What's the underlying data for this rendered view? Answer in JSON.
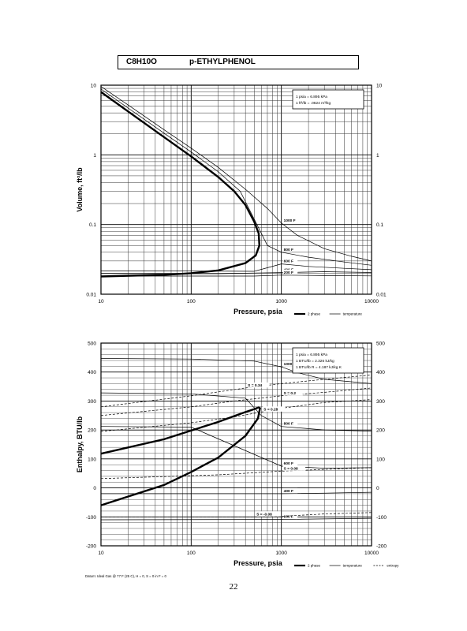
{
  "header": {
    "formula": "C8H10O",
    "name": "p-ETHYLPHENOL"
  },
  "page_number": "22",
  "chart_data": [
    {
      "type": "line",
      "title": "",
      "xlabel": "Pressure,  psia",
      "ylabel": "Volume, ft^3/lb",
      "x_scale": "log",
      "y_scale": "log",
      "xlim": [
        10,
        10000
      ],
      "ylim": [
        0.01,
        10
      ],
      "x_ticks": [
        {
          "v": 10,
          "label": "10"
        },
        {
          "v": 100,
          "label": "100"
        },
        {
          "v": 1000,
          "label": "1000"
        },
        {
          "v": 10000,
          "label": "10000"
        }
      ],
      "y_ticks": [
        {
          "v": 0.01,
          "label": "0.01"
        },
        {
          "v": 0.1,
          "label": "0.1"
        },
        {
          "v": 1,
          "label": "1"
        },
        {
          "v": 10,
          "label": "10"
        }
      ],
      "grid": true,
      "info_box": [
        "1 psia  =  6.895 kPa",
        "1 ft^3/lb  =  .0624 m^3/kg"
      ],
      "legend": [
        {
          "label": "2 phase",
          "style": "thick"
        },
        {
          "label": "temperature",
          "style": "thin"
        }
      ],
      "series": [
        {
          "kind": "two-phase",
          "points": [
            [
              10,
              8.0
            ],
            [
              20,
              4.2
            ],
            [
              50,
              1.8
            ],
            [
              100,
              0.95
            ],
            [
              200,
              0.48
            ],
            [
              300,
              0.3
            ],
            [
              400,
              0.19
            ],
            [
              500,
              0.11
            ],
            [
              560,
              0.075
            ],
            [
              570,
              0.05
            ],
            [
              520,
              0.036
            ],
            [
              400,
              0.028
            ],
            [
              200,
              0.022
            ],
            [
              100,
              0.02
            ],
            [
              50,
              0.019
            ],
            [
              10,
              0.018
            ]
          ]
        },
        {
          "kind": "temperature",
          "label": "1000 F",
          "points": [
            [
              10,
              9.6
            ],
            [
              20,
              5.2
            ],
            [
              50,
              2.3
            ],
            [
              100,
              1.25
            ],
            [
              200,
              0.66
            ],
            [
              400,
              0.32
            ],
            [
              700,
              0.17
            ],
            [
              1000,
              0.105
            ],
            [
              1500,
              0.07
            ],
            [
              3000,
              0.045
            ],
            [
              6000,
              0.035
            ],
            [
              10000,
              0.03
            ]
          ]
        },
        {
          "kind": "temperature",
          "label": "800 F",
          "points": [
            [
              10,
              8.8
            ],
            [
              20,
              4.7
            ],
            [
              50,
              2.05
            ],
            [
              100,
              1.1
            ],
            [
              200,
              0.57
            ],
            [
              350,
              0.3
            ],
            [
              500,
              0.12
            ],
            [
              700,
              0.05
            ],
            [
              1000,
              0.04
            ],
            [
              2000,
              0.034
            ],
            [
              5000,
              0.029
            ],
            [
              10000,
              0.026
            ]
          ]
        },
        {
          "kind": "temperature",
          "label": "600 F",
          "points": [
            [
              10,
              0.0215
            ],
            [
              100,
              0.0215
            ],
            [
              500,
              0.0213
            ],
            [
              1000,
              0.0272
            ],
            [
              2000,
              0.025
            ],
            [
              5000,
              0.0235
            ],
            [
              10000,
              0.0225
            ]
          ]
        },
        {
          "kind": "temperature",
          "label": "400 F",
          "points": [
            [
              10,
              0.0198
            ],
            [
              200,
              0.0197
            ],
            [
              1000,
              0.0204
            ],
            [
              3000,
              0.021
            ],
            [
              10000,
              0.0205
            ]
          ]
        },
        {
          "kind": "temperature",
          "label": "200 F",
          "points": [
            [
              10,
              0.0182
            ],
            [
              500,
              0.0182
            ],
            [
              1000,
              0.0188
            ],
            [
              3000,
              0.0185
            ],
            [
              10000,
              0.0183
            ]
          ]
        }
      ]
    },
    {
      "type": "line",
      "title": "",
      "xlabel": "Pressure,  psia",
      "ylabel": "Enthalpy, BTU/lb",
      "x_scale": "log",
      "y_scale": "linear",
      "xlim": [
        10,
        10000
      ],
      "ylim": [
        -200,
        500
      ],
      "x_ticks": [
        {
          "v": 10,
          "label": "10"
        },
        {
          "v": 100,
          "label": "100"
        },
        {
          "v": 1000,
          "label": "1000"
        },
        {
          "v": 10000,
          "label": "10000"
        }
      ],
      "y_ticks": [
        {
          "v": -200,
          "label": "-200"
        },
        {
          "v": -100,
          "label": "-100"
        },
        {
          "v": 0,
          "label": "0"
        },
        {
          "v": 100,
          "label": "100"
        },
        {
          "v": 200,
          "label": "200"
        },
        {
          "v": 300,
          "label": "300"
        },
        {
          "v": 400,
          "label": "400"
        },
        {
          "v": 500,
          "label": "500"
        }
      ],
      "grid": true,
      "info_box": [
        "1 psia  =  6.895 kPa",
        "1 BTU/lb  =  2.326 kJ/kg",
        "1 BTU/lb R  =  4.187 kJ/kg K"
      ],
      "legend": [
        {
          "label": "2 phase",
          "style": "thick"
        },
        {
          "label": "temperature",
          "style": "thin"
        },
        {
          "label": "entropy",
          "style": "dashed"
        }
      ],
      "footnote": "Datum: Ideal Gas @ 77 F (25 C),  H = 0,  S = 0 in F = 0",
      "series": [
        {
          "kind": "two-phase",
          "points": [
            [
              10,
              118
            ],
            [
              50,
              168
            ],
            [
              100,
              198
            ],
            [
              200,
              228
            ],
            [
              300,
              248
            ],
            [
              400,
              262
            ],
            [
              500,
              272
            ],
            [
              560,
              278
            ],
            [
              580,
              275
            ],
            [
              550,
              240
            ],
            [
              400,
              180
            ],
            [
              200,
              105
            ],
            [
              100,
              55
            ],
            [
              50,
              10
            ],
            [
              10,
              -60
            ]
          ]
        },
        {
          "kind": "temperature",
          "label": "1000 F",
          "points": [
            [
              10,
              447
            ],
            [
              100,
              445
            ],
            [
              500,
              438
            ],
            [
              1000,
              418
            ],
            [
              1500,
              398
            ],
            [
              3000,
              375
            ],
            [
              10000,
              360
            ]
          ]
        },
        {
          "kind": "temperature",
          "label": "800 F",
          "points": [
            [
              10,
              328
            ],
            [
              100,
              325
            ],
            [
              400,
              310
            ],
            [
              600,
              250
            ],
            [
              1000,
              212
            ],
            [
              3000,
              200
            ],
            [
              10000,
              196
            ]
          ]
        },
        {
          "kind": "temperature",
          "label": "600 F",
          "points": [
            [
              10,
              212
            ],
            [
              100,
              210
            ],
            [
              1000,
              75
            ],
            [
              3000,
              68
            ],
            [
              10000,
              70
            ]
          ]
        },
        {
          "kind": "temperature",
          "label": "400 F",
          "points": [
            [
              10,
              -20
            ],
            [
              1000,
              -20
            ],
            [
              3000,
              -18
            ],
            [
              10000,
              -15
            ]
          ]
        },
        {
          "kind": "temperature",
          "label": "200 F",
          "points": [
            [
              10,
              -110
            ],
            [
              1000,
              -109
            ],
            [
              10000,
              -105
            ]
          ]
        },
        {
          "kind": "entropy",
          "label": "S = 0.34",
          "points": [
            [
              10,
              280
            ],
            [
              100,
              318
            ],
            [
              400,
              345
            ],
            [
              1000,
              360
            ],
            [
              3000,
              375
            ],
            [
              10000,
              390
            ]
          ]
        },
        {
          "kind": "entropy",
          "label": "S = 0.2",
          "points": [
            [
              10,
              250
            ],
            [
              100,
              280
            ],
            [
              300,
              300
            ],
            [
              1000,
              318
            ],
            [
              3000,
              330
            ],
            [
              10000,
              345
            ]
          ]
        },
        {
          "kind": "entropy",
          "label": "S = 0.28",
          "points": [
            [
              10,
              195
            ],
            [
              100,
              225
            ],
            [
              300,
              245
            ],
            [
              600,
              262
            ],
            [
              1000,
              275
            ],
            [
              3000,
              295
            ],
            [
              10000,
              305
            ]
          ]
        },
        {
          "kind": "entropy",
          "label": "S = 0.08",
          "points": [
            [
              10,
              32
            ],
            [
              200,
              45
            ],
            [
              1000,
              58
            ],
            [
              3000,
              64
            ],
            [
              10000,
              70
            ]
          ]
        },
        {
          "kind": "entropy",
          "label": "S = -0.08",
          "points": [
            [
              10,
              -100
            ],
            [
              500,
              -100
            ],
            [
              1000,
              -98
            ],
            [
              3000,
              -90
            ],
            [
              10000,
              -85
            ]
          ]
        }
      ]
    }
  ]
}
